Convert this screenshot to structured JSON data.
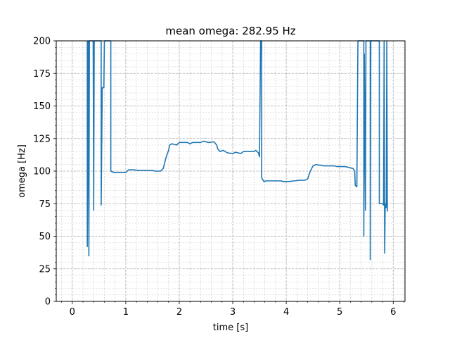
{
  "chart_data": {
    "type": "line",
    "title": "mean omega: 282.95 Hz",
    "xlabel": "time [s]",
    "ylabel": "omega [Hz]",
    "xlim": [
      -0.3,
      6.22
    ],
    "ylim": [
      0,
      200
    ],
    "xticks": [
      0,
      1,
      2,
      3,
      4,
      5,
      6
    ],
    "xtick_labels": [
      "0",
      "1",
      "2",
      "3",
      "4",
      "5",
      "6"
    ],
    "yticks": [
      0,
      25,
      50,
      75,
      100,
      125,
      150,
      175,
      200
    ],
    "ytick_labels": [
      "0",
      "25",
      "50",
      "75",
      "100",
      "125",
      "150",
      "175",
      "200"
    ],
    "minor_x_step": 0.2,
    "minor_y_step": 5,
    "grid": true,
    "grid_style": "dashed, major and minor",
    "series": [
      {
        "color": "#1f77b4",
        "points": [
          [
            0.28,
            200
          ],
          [
            0.28,
            42
          ],
          [
            0.3,
            200
          ],
          [
            0.31,
            35
          ],
          [
            0.32,
            200
          ],
          [
            0.39,
            200
          ],
          [
            0.4,
            70
          ],
          [
            0.41,
            200
          ],
          [
            0.54,
            200
          ],
          [
            0.54,
            74
          ],
          [
            0.56,
            164
          ],
          [
            0.59,
            164
          ],
          [
            0.6,
            200
          ],
          [
            0.72,
            200
          ],
          [
            0.72,
            100
          ],
          [
            0.77,
            99
          ],
          [
            1.0,
            99
          ],
          [
            1.05,
            101
          ],
          [
            1.15,
            101
          ],
          [
            1.25,
            100.5
          ],
          [
            1.5,
            100.5
          ],
          [
            1.55,
            100
          ],
          [
            1.65,
            100
          ],
          [
            1.7,
            102
          ],
          [
            1.75,
            110
          ],
          [
            1.8,
            116
          ],
          [
            1.82,
            120
          ],
          [
            1.86,
            121
          ],
          [
            1.95,
            120
          ],
          [
            2.0,
            122
          ],
          [
            2.15,
            122
          ],
          [
            2.2,
            121
          ],
          [
            2.25,
            122
          ],
          [
            2.4,
            122
          ],
          [
            2.45,
            123
          ],
          [
            2.55,
            122
          ],
          [
            2.65,
            122.5
          ],
          [
            2.7,
            120
          ],
          [
            2.72,
            117
          ],
          [
            2.76,
            115
          ],
          [
            2.82,
            116
          ],
          [
            2.9,
            114
          ],
          [
            3.0,
            113.5
          ],
          [
            3.05,
            114.5
          ],
          [
            3.15,
            113.5
          ],
          [
            3.2,
            115
          ],
          [
            3.4,
            115
          ],
          [
            3.43,
            116
          ],
          [
            3.48,
            114
          ],
          [
            3.5,
            111
          ],
          [
            3.52,
            200
          ],
          [
            3.54,
            200
          ],
          [
            3.54,
            95
          ],
          [
            3.58,
            92
          ],
          [
            3.62,
            92.5
          ],
          [
            3.9,
            92.5
          ],
          [
            3.95,
            92
          ],
          [
            4.05,
            92
          ],
          [
            4.15,
            92.5
          ],
          [
            4.25,
            93
          ],
          [
            4.35,
            93
          ],
          [
            4.4,
            94
          ],
          [
            4.45,
            100
          ],
          [
            4.5,
            104
          ],
          [
            4.55,
            105
          ],
          [
            4.65,
            104.5
          ],
          [
            4.7,
            104
          ],
          [
            4.9,
            104
          ],
          [
            4.95,
            103.5
          ],
          [
            5.1,
            103.5
          ],
          [
            5.15,
            103
          ],
          [
            5.25,
            102
          ],
          [
            5.28,
            100
          ],
          [
            5.29,
            89
          ],
          [
            5.32,
            88
          ],
          [
            5.34,
            200
          ],
          [
            5.45,
            200
          ],
          [
            5.45,
            50
          ],
          [
            5.46,
            190
          ],
          [
            5.48,
            70
          ],
          [
            5.49,
            200
          ],
          [
            5.57,
            200
          ],
          [
            5.57,
            32
          ],
          [
            5.58,
            200
          ],
          [
            5.74,
            200
          ],
          [
            5.74,
            75
          ],
          [
            5.8,
            75
          ],
          [
            5.82,
            74
          ],
          [
            5.83,
            200
          ],
          [
            5.84,
            37
          ],
          [
            5.85,
            75
          ],
          [
            5.87,
            72
          ],
          [
            5.88,
            200
          ],
          [
            5.89,
            69
          ]
        ]
      }
    ]
  }
}
